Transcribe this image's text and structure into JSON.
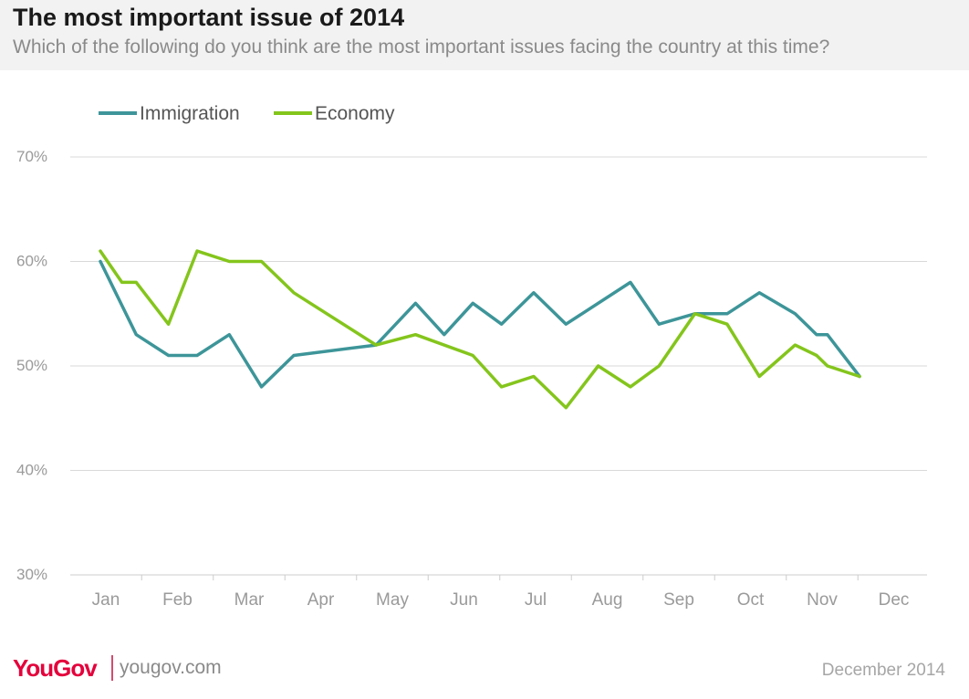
{
  "header": {
    "title": "The most important issue of 2014",
    "subtitle": "Which of the following do you think are the most important issues facing the country at this time?"
  },
  "footer": {
    "brand": "YouGov",
    "site": "yougov.com",
    "date": "December 2014"
  },
  "colors": {
    "immigration": "#3d9599",
    "economy": "#84c51c",
    "grid": "#d9d9d9",
    "axis_text": "#9a9a9a"
  },
  "chart_data": {
    "type": "line",
    "title": "The most important issue of 2014",
    "xlabel": "",
    "ylabel": "",
    "ylim": [
      30,
      70
    ],
    "yticks": [
      30,
      40,
      50,
      60,
      70
    ],
    "ytick_labels": [
      "30%",
      "40%",
      "50%",
      "60%",
      "70%"
    ],
    "months": [
      "Jan",
      "Feb",
      "Mar",
      "Apr",
      "May",
      "Jun",
      "Jul",
      "Aug",
      "Sep",
      "Oct",
      "Nov",
      "Dec"
    ],
    "grid": true,
    "legend_position": "top-left",
    "series": [
      {
        "name": "Immigration",
        "color": "#3d9599",
        "points": [
          [
            0.0,
            60
          ],
          [
            0.5,
            53
          ],
          [
            0.95,
            51
          ],
          [
            1.35,
            51
          ],
          [
            1.8,
            53
          ],
          [
            2.25,
            48
          ],
          [
            2.7,
            51
          ],
          [
            3.85,
            52
          ],
          [
            4.4,
            56
          ],
          [
            4.8,
            53
          ],
          [
            5.2,
            56
          ],
          [
            5.6,
            54
          ],
          [
            6.05,
            57
          ],
          [
            6.5,
            54
          ],
          [
            7.4,
            58
          ],
          [
            7.8,
            54
          ],
          [
            8.3,
            55
          ],
          [
            8.75,
            55
          ],
          [
            9.2,
            57
          ],
          [
            9.7,
            55
          ],
          [
            10.0,
            53
          ],
          [
            10.15,
            53
          ],
          [
            10.6,
            49
          ]
        ]
      },
      {
        "name": "Economy",
        "color": "#84c51c",
        "points": [
          [
            0.0,
            61
          ],
          [
            0.3,
            58
          ],
          [
            0.5,
            58
          ],
          [
            0.95,
            54
          ],
          [
            1.35,
            61
          ],
          [
            1.8,
            60
          ],
          [
            2.25,
            60
          ],
          [
            2.7,
            57
          ],
          [
            3.85,
            52
          ],
          [
            4.4,
            53
          ],
          [
            5.2,
            51
          ],
          [
            5.6,
            48
          ],
          [
            6.05,
            49
          ],
          [
            6.5,
            46
          ],
          [
            6.95,
            50
          ],
          [
            7.4,
            48
          ],
          [
            7.8,
            50
          ],
          [
            8.3,
            55
          ],
          [
            8.75,
            54
          ],
          [
            9.2,
            49
          ],
          [
            9.7,
            52
          ],
          [
            10.0,
            51
          ],
          [
            10.15,
            50
          ],
          [
            10.6,
            49
          ]
        ]
      }
    ]
  }
}
